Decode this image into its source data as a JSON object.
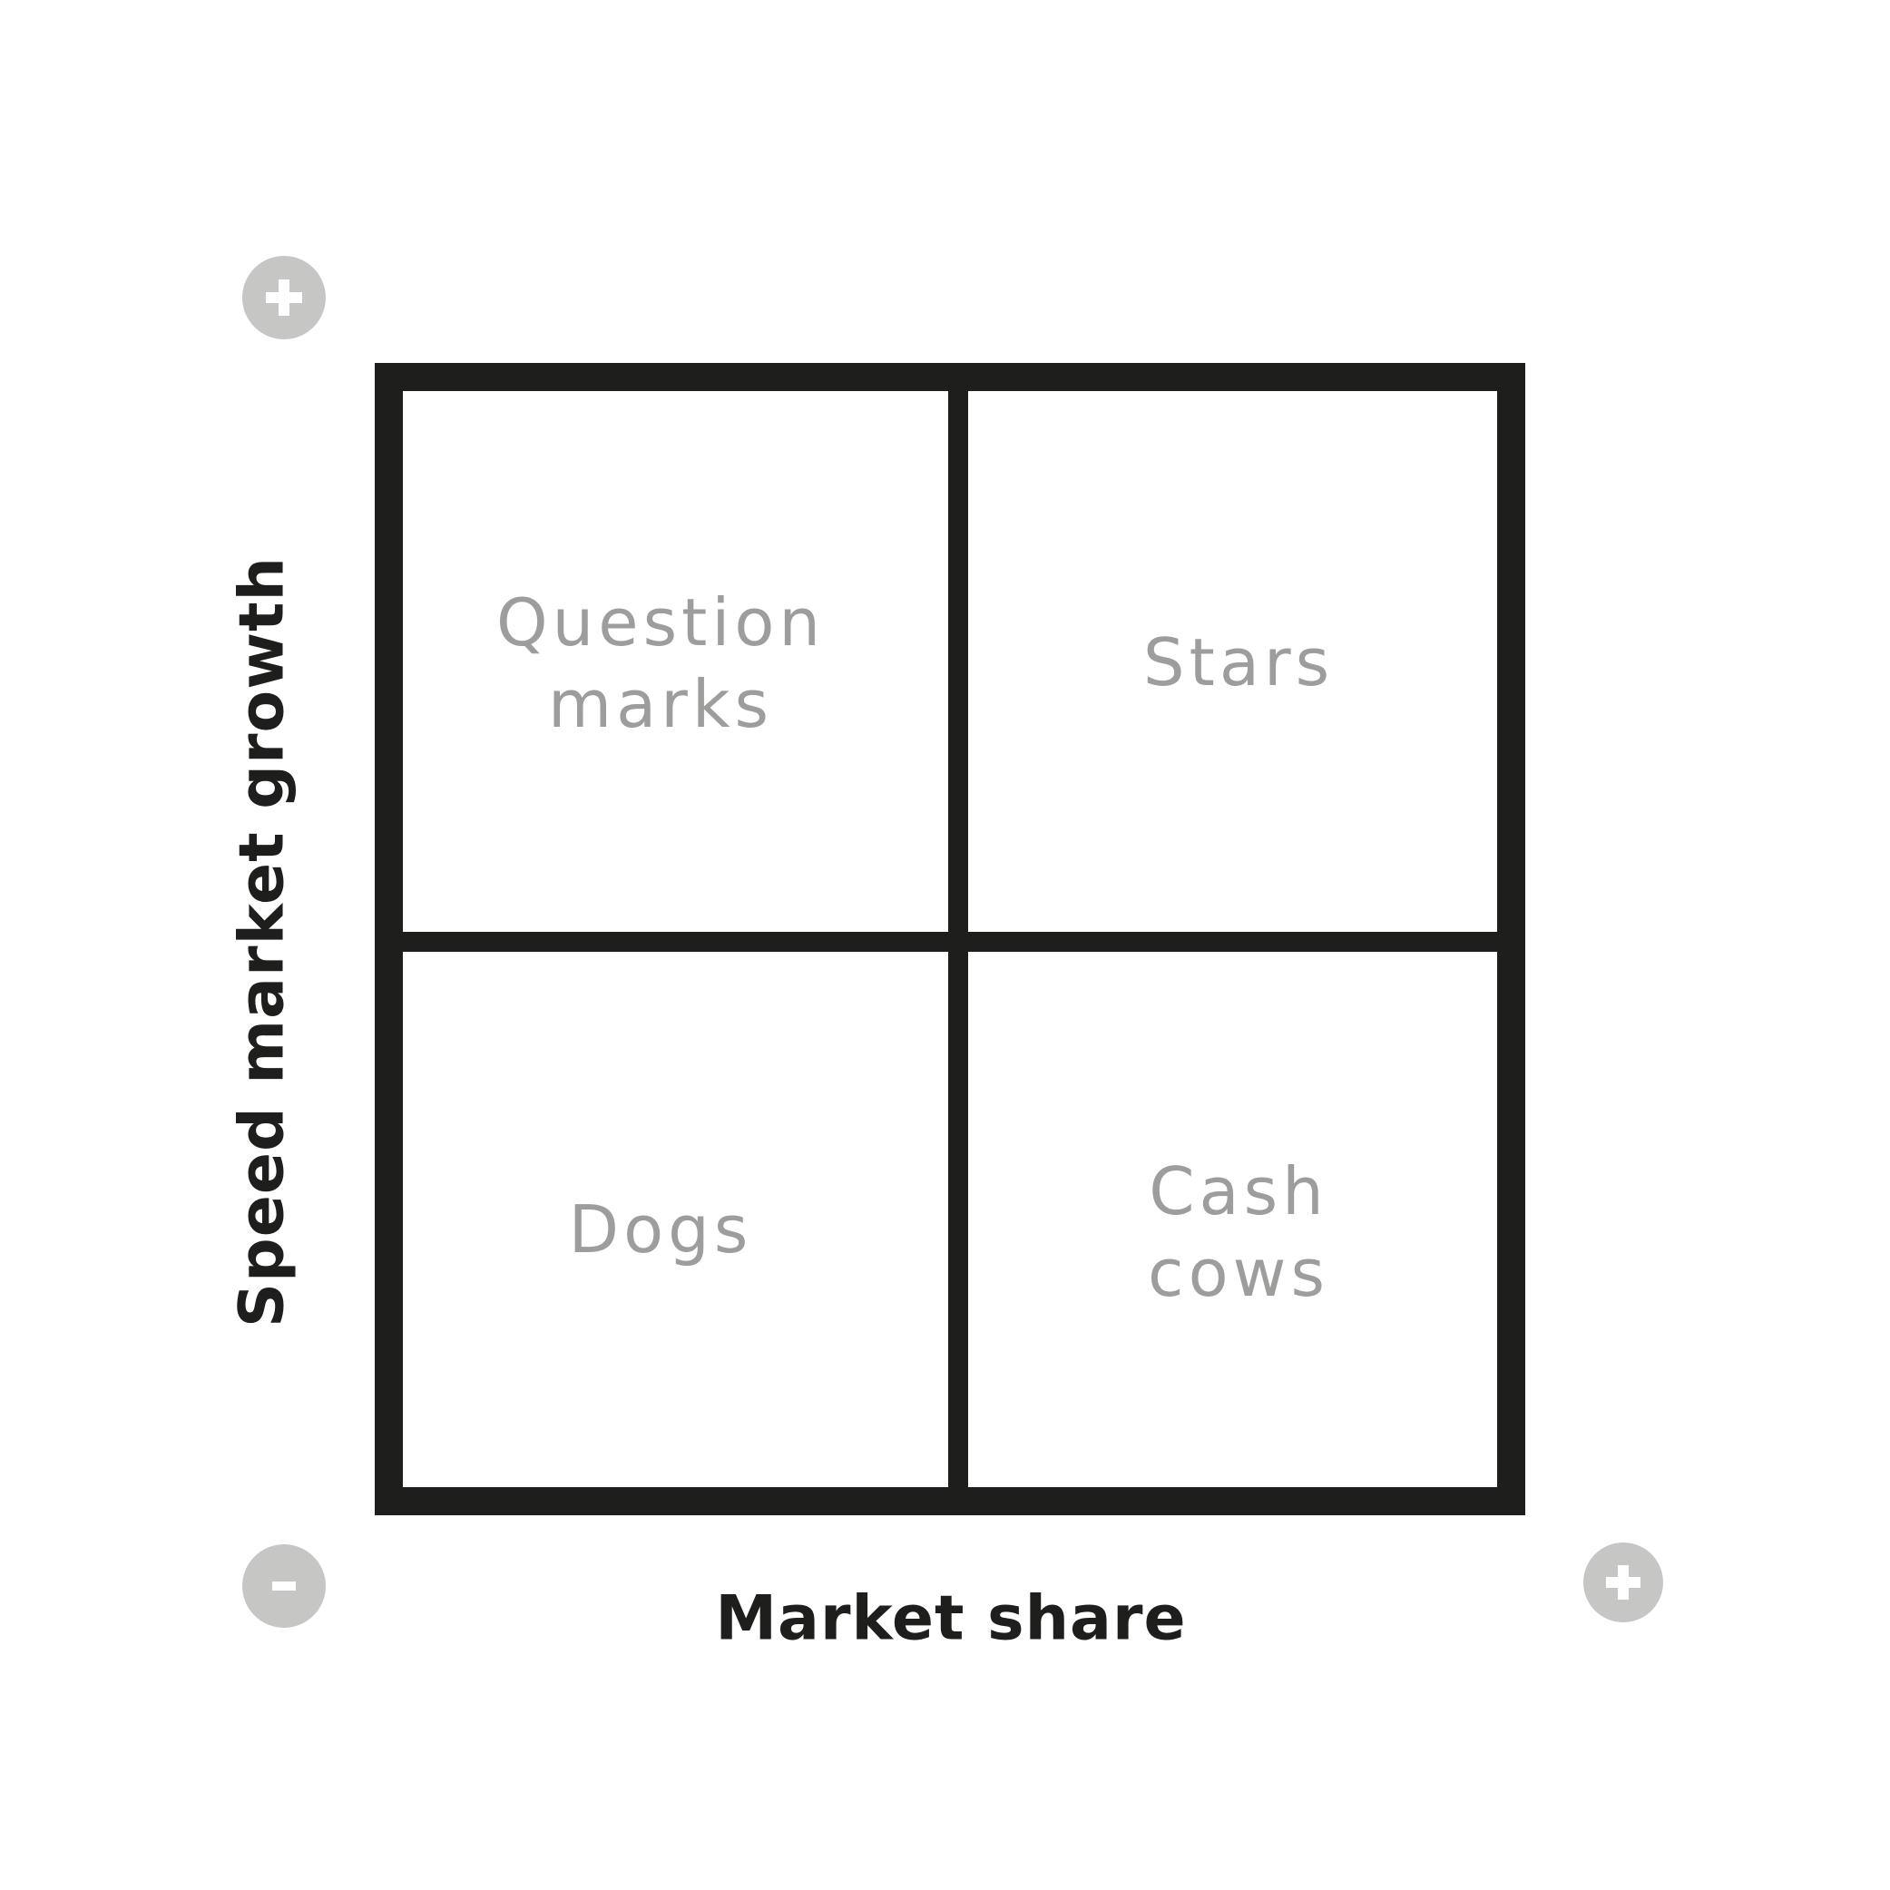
{
  "diagram": {
    "quadrants": {
      "top_left": "Question\nmarks",
      "top_right": "Stars",
      "bottom_left": "Dogs",
      "bottom_right": "Cash\ncows"
    },
    "y_axis_label": "Speed market growth",
    "x_axis_label": "Market share",
    "indicators": {
      "y_axis_high": "plus-icon",
      "origin_low": "minus-icon",
      "x_axis_high": "plus-icon"
    },
    "colors": {
      "grid_lines": "#1e1e1c",
      "quadrant_text": "#9d9d9c",
      "axis_text": "#1e1e1c",
      "indicator_fill": "#c6c6c5",
      "indicator_glyph": "#ffffff"
    }
  }
}
